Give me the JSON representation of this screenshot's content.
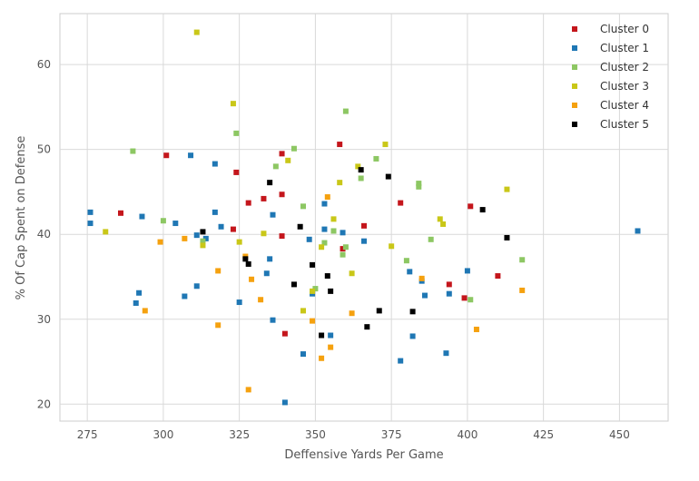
{
  "chart_data": {
    "type": "scatter",
    "xlabel": "Deffensive Yards Per Game",
    "ylabel": "% Of Cap Spent on Defense",
    "xlim": [
      266,
      466
    ],
    "ylim": [
      18,
      66
    ],
    "xticks": [
      275,
      300,
      325,
      350,
      375,
      400,
      425,
      450
    ],
    "yticks": [
      20,
      30,
      40,
      50,
      60
    ],
    "grid": true,
    "legend_position": "top-right",
    "series": [
      {
        "name": "Cluster 0",
        "color": "#c4161c",
        "points": [
          [
            286,
            42.5
          ],
          [
            301,
            49.3
          ],
          [
            323,
            40.6
          ],
          [
            324,
            47.3
          ],
          [
            328,
            43.7
          ],
          [
            333,
            44.2
          ],
          [
            339,
            44.7
          ],
          [
            339,
            49.5
          ],
          [
            339,
            39.8
          ],
          [
            340,
            28.3
          ],
          [
            358,
            50.6
          ],
          [
            359,
            38.3
          ],
          [
            366,
            41.0
          ],
          [
            378,
            43.7
          ],
          [
            394,
            34.1
          ],
          [
            399,
            32.5
          ],
          [
            401,
            43.3
          ],
          [
            410,
            35.1
          ]
        ]
      },
      {
        "name": "Cluster 1",
        "color": "#1f77b4",
        "points": [
          [
            276,
            42.6
          ],
          [
            276,
            41.3
          ],
          [
            291,
            31.9
          ],
          [
            292,
            33.1
          ],
          [
            293,
            42.1
          ],
          [
            304,
            41.3
          ],
          [
            307,
            32.7
          ],
          [
            309,
            49.3
          ],
          [
            311,
            39.9
          ],
          [
            311,
            33.9
          ],
          [
            314,
            39.5
          ],
          [
            317,
            48.3
          ],
          [
            317,
            42.6
          ],
          [
            319,
            40.9
          ],
          [
            325,
            32.0
          ],
          [
            334,
            35.4
          ],
          [
            335,
            37.1
          ],
          [
            336,
            42.3
          ],
          [
            336,
            29.9
          ],
          [
            340,
            20.2
          ],
          [
            346,
            25.9
          ],
          [
            348,
            39.4
          ],
          [
            349,
            33.0
          ],
          [
            353,
            43.6
          ],
          [
            353,
            40.6
          ],
          [
            355,
            28.1
          ],
          [
            359,
            40.2
          ],
          [
            366,
            39.2
          ],
          [
            378,
            25.1
          ],
          [
            381,
            35.6
          ],
          [
            382,
            28.0
          ],
          [
            385,
            34.5
          ],
          [
            386,
            32.8
          ],
          [
            393,
            26.0
          ],
          [
            394,
            33.0
          ],
          [
            400,
            35.7
          ],
          [
            456,
            40.4
          ]
        ]
      },
      {
        "name": "Cluster 2",
        "color": "#8dc763",
        "points": [
          [
            290,
            49.8
          ],
          [
            300,
            41.6
          ],
          [
            313,
            39.2
          ],
          [
            324,
            51.9
          ],
          [
            337,
            48.0
          ],
          [
            343,
            50.1
          ],
          [
            346,
            43.3
          ],
          [
            350,
            33.6
          ],
          [
            353,
            39.0
          ],
          [
            356,
            40.4
          ],
          [
            359,
            37.6
          ],
          [
            360,
            54.5
          ],
          [
            360,
            38.5
          ],
          [
            365,
            46.6
          ],
          [
            370,
            48.9
          ],
          [
            380,
            36.9
          ],
          [
            384,
            45.6
          ],
          [
            384,
            46.0
          ],
          [
            388,
            39.4
          ],
          [
            401,
            32.3
          ],
          [
            418,
            37.0
          ]
        ]
      },
      {
        "name": "Cluster 3",
        "color": "#c9c718",
        "points": [
          [
            281,
            40.3
          ],
          [
            311,
            63.8
          ],
          [
            313,
            38.7
          ],
          [
            323,
            55.4
          ],
          [
            325,
            39.1
          ],
          [
            333,
            40.1
          ],
          [
            341,
            48.7
          ],
          [
            346,
            31.0
          ],
          [
            349,
            33.3
          ],
          [
            352,
            38.5
          ],
          [
            356,
            41.8
          ],
          [
            358,
            46.1
          ],
          [
            362,
            35.4
          ],
          [
            364,
            48.0
          ],
          [
            373,
            50.6
          ],
          [
            375,
            38.6
          ],
          [
            391,
            41.8
          ],
          [
            392,
            41.2
          ],
          [
            413,
            45.3
          ]
        ]
      },
      {
        "name": "Cluster 4",
        "color": "#f5a10f",
        "points": [
          [
            294,
            31.0
          ],
          [
            299,
            39.1
          ],
          [
            307,
            39.5
          ],
          [
            318,
            29.3
          ],
          [
            318,
            35.7
          ],
          [
            327,
            37.4
          ],
          [
            328,
            21.7
          ],
          [
            329,
            34.7
          ],
          [
            332,
            32.3
          ],
          [
            349,
            29.8
          ],
          [
            352,
            25.4
          ],
          [
            354,
            44.4
          ],
          [
            355,
            26.7
          ],
          [
            362,
            30.7
          ],
          [
            385,
            34.8
          ],
          [
            403,
            28.8
          ],
          [
            418,
            33.4
          ]
        ]
      },
      {
        "name": "Cluster 5",
        "color": "#000000",
        "points": [
          [
            313,
            40.3
          ],
          [
            327,
            37.1
          ],
          [
            328,
            36.5
          ],
          [
            335,
            46.1
          ],
          [
            343,
            34.1
          ],
          [
            345,
            40.9
          ],
          [
            349,
            36.4
          ],
          [
            352,
            28.1
          ],
          [
            354,
            35.1
          ],
          [
            355,
            33.3
          ],
          [
            365,
            47.6
          ],
          [
            367,
            29.1
          ],
          [
            371,
            31.0
          ],
          [
            374,
            46.8
          ],
          [
            382,
            30.9
          ],
          [
            405,
            42.9
          ],
          [
            413,
            39.6
          ]
        ]
      }
    ]
  }
}
